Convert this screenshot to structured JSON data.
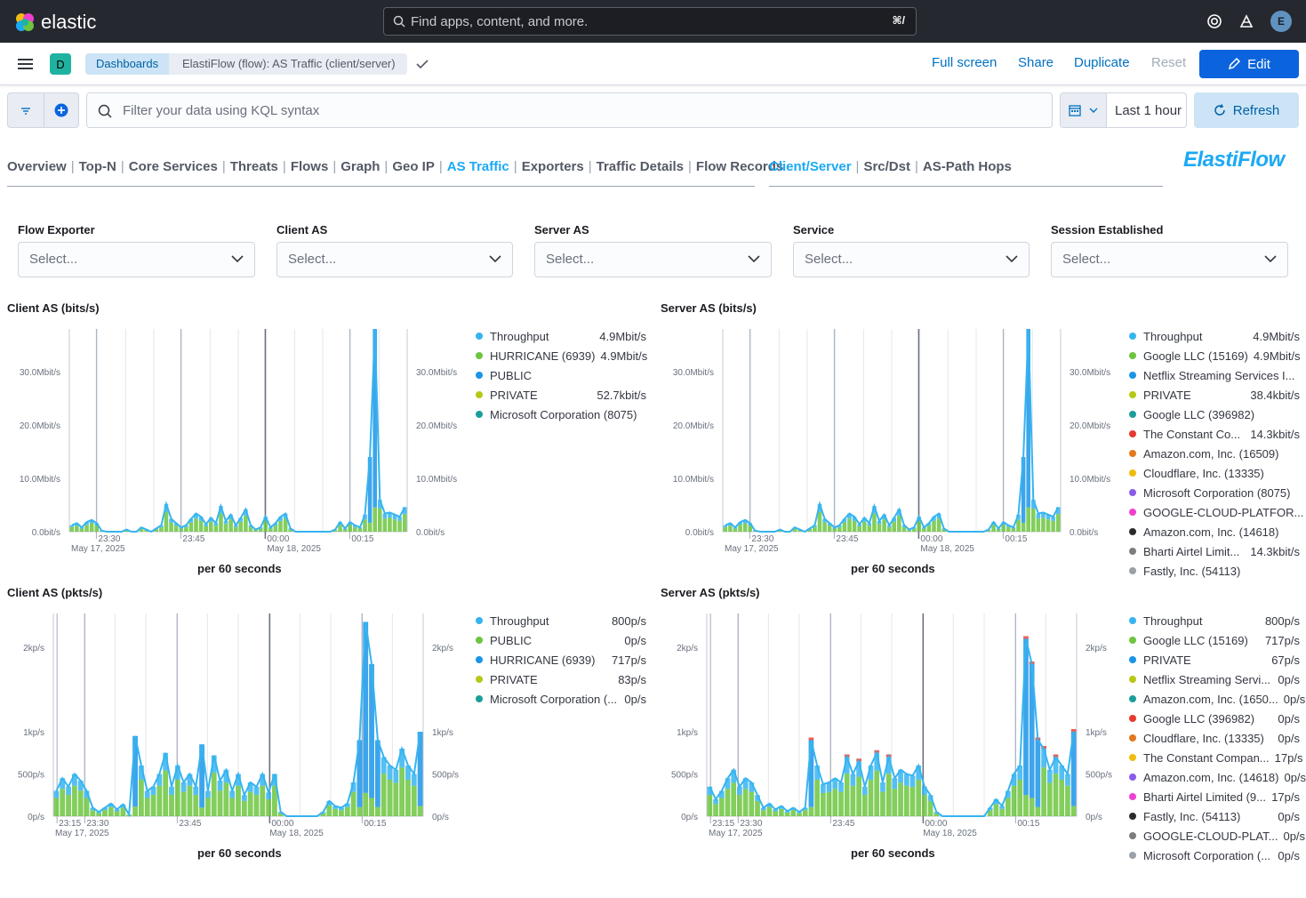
{
  "app": {
    "name": "elastic",
    "search_placeholder": "Find apps, content, and more.",
    "search_shortcut": "⌘/",
    "user_initial": "E"
  },
  "breadcrumb": {
    "space": "D",
    "root": "Dashboards",
    "current": "ElastiFlow (flow): AS Traffic (client/server)"
  },
  "actions": {
    "full_screen": "Full screen",
    "share": "Share",
    "duplicate": "Duplicate",
    "reset": "Reset",
    "edit": "Edit"
  },
  "query": {
    "placeholder": "Filter your data using KQL syntax",
    "time_range": "Last 1 hour",
    "refresh": "Refresh"
  },
  "nav": {
    "tabs": [
      "Overview",
      "Top-N",
      "Core Services",
      "Threats",
      "Flows",
      "Graph",
      "Geo IP",
      "AS Traffic",
      "Exporters",
      "Traffic Details",
      "Flow Records"
    ],
    "active": "AS Traffic",
    "subtabs": [
      "Client/Server",
      "Src/Dst",
      "AS-Path Hops"
    ],
    "active_sub": "Client/Server",
    "brand": "ElastiFlow"
  },
  "controls": [
    {
      "label": "Flow Exporter",
      "value": "Select..."
    },
    {
      "label": "Client AS",
      "value": "Select..."
    },
    {
      "label": "Server AS",
      "value": "Select..."
    },
    {
      "label": "Service",
      "value": "Select..."
    },
    {
      "label": "Session Established",
      "value": "Select..."
    }
  ],
  "colors": {
    "throughput": "#36b4f0",
    "green": "#6dc53f",
    "blue": "#1a95e8",
    "olive": "#b6c816",
    "teal": "#1b9e9b",
    "red": "#e7382d",
    "orange": "#e3781e",
    "yellow": "#f0bc0e",
    "purple": "#8a5ce9",
    "magenta": "#f03fd0",
    "black": "#2b2b2b",
    "gray": "#7d7d7d"
  },
  "panels": [
    {
      "title": "Client AS (bits/s)",
      "xlabel": "per 60 seconds",
      "x_ticks": [
        "23:30",
        "23:45",
        "00:00",
        "00:15"
      ],
      "x_dates": [
        "May 17, 2025",
        "May 18, 2025"
      ],
      "y_ticks": [
        "0.0bit/s",
        "10.0Mbit/s",
        "20.0Mbit/s",
        "30.0Mbit/s"
      ],
      "legend": [
        {
          "name": "Throughput",
          "value": "4.9Mbit/s",
          "color": "#36b4f0"
        },
        {
          "name": "HURRICANE (6939)",
          "value": "4.9Mbit/s",
          "color": "#6dc53f"
        },
        {
          "name": "PUBLIC",
          "value": "",
          "color": "#1a95e8"
        },
        {
          "name": "PRIVATE",
          "value": "52.7kbit/s",
          "color": "#b6c816"
        },
        {
          "name": "Microsoft Corporation (8075)",
          "value": "",
          "color": "#1b9e9b"
        }
      ]
    },
    {
      "title": "Server AS (bits/s)",
      "xlabel": "per 60 seconds",
      "x_ticks": [
        "23:30",
        "23:45",
        "00:00",
        "00:15"
      ],
      "x_dates": [
        "May 17, 2025",
        "May 18, 2025"
      ],
      "y_ticks": [
        "0.0bit/s",
        "10.0Mbit/s",
        "20.0Mbit/s",
        "30.0Mbit/s"
      ],
      "legend": [
        {
          "name": "Throughput",
          "value": "4.9Mbit/s",
          "color": "#36b4f0"
        },
        {
          "name": "Google LLC (15169)",
          "value": "4.9Mbit/s",
          "color": "#6dc53f"
        },
        {
          "name": "Netflix Streaming Services I...",
          "value": "",
          "color": "#1a95e8"
        },
        {
          "name": "PRIVATE",
          "value": "38.4kbit/s",
          "color": "#b6c816"
        },
        {
          "name": "Google LLC (396982)",
          "value": "",
          "color": "#1b9e9b"
        },
        {
          "name": "The Constant Co...",
          "value": "14.3kbit/s",
          "color": "#e7382d"
        },
        {
          "name": "Amazon.com, Inc. (16509)",
          "value": "",
          "color": "#e3781e"
        },
        {
          "name": "Cloudflare, Inc. (13335)",
          "value": "",
          "color": "#f0bc0e"
        },
        {
          "name": "Microsoft Corporation (8075)",
          "value": "",
          "color": "#8a5ce9"
        },
        {
          "name": "GOOGLE-CLOUD-PLATFOR...",
          "value": "",
          "color": "#f03fd0"
        },
        {
          "name": "Amazon.com, Inc. (14618)",
          "value": "",
          "color": "#2b2b2b"
        },
        {
          "name": "Bharti Airtel Limit...",
          "value": "14.3kbit/s",
          "color": "#7d7d7d"
        },
        {
          "name": "Fastly, Inc. (54113)",
          "value": "",
          "color": "#9aa0a6"
        }
      ]
    },
    {
      "title": "Client AS (pkts/s)",
      "xlabel": "per 60 seconds",
      "x_ticks": [
        "23:15",
        "23:30",
        "23:45",
        "00:00",
        "00:15"
      ],
      "x_dates": [
        "May 17, 2025",
        "May 18, 2025"
      ],
      "y_ticks": [
        "0p/s",
        "500p/s",
        "1kp/s",
        "2kp/s"
      ],
      "legend": [
        {
          "name": "Throughput",
          "value": "800p/s",
          "color": "#36b4f0"
        },
        {
          "name": "PUBLIC",
          "value": "0p/s",
          "color": "#6dc53f"
        },
        {
          "name": "HURRICANE (6939)",
          "value": "717p/s",
          "color": "#1a95e8"
        },
        {
          "name": "PRIVATE",
          "value": "83p/s",
          "color": "#b6c816"
        },
        {
          "name": "Microsoft Corporation (...",
          "value": "0p/s",
          "color": "#1b9e9b"
        }
      ]
    },
    {
      "title": "Server AS (pkts/s)",
      "xlabel": "per 60 seconds",
      "x_ticks": [
        "23:15",
        "23:30",
        "23:45",
        "00:00",
        "00:15"
      ],
      "x_dates": [
        "May 17, 2025",
        "May 18, 2025"
      ],
      "y_ticks": [
        "0p/s",
        "500p/s",
        "1kp/s",
        "2kp/s"
      ],
      "legend": [
        {
          "name": "Throughput",
          "value": "800p/s",
          "color": "#36b4f0"
        },
        {
          "name": "Google LLC (15169)",
          "value": "717p/s",
          "color": "#6dc53f"
        },
        {
          "name": "PRIVATE",
          "value": "67p/s",
          "color": "#1a95e8"
        },
        {
          "name": "Netflix Streaming Servi...",
          "value": "0p/s",
          "color": "#b6c816"
        },
        {
          "name": "Amazon.com, Inc. (1650...",
          "value": "0p/s",
          "color": "#1b9e9b"
        },
        {
          "name": "Google LLC (396982)",
          "value": "0p/s",
          "color": "#e7382d"
        },
        {
          "name": "Cloudflare, Inc. (13335)",
          "value": "0p/s",
          "color": "#e3781e"
        },
        {
          "name": "The Constant Compan...",
          "value": "17p/s",
          "color": "#f0bc0e"
        },
        {
          "name": "Amazon.com, Inc. (14618)",
          "value": "0p/s",
          "color": "#8a5ce9"
        },
        {
          "name": "Bharti Airtel Limited (9...",
          "value": "17p/s",
          "color": "#f03fd0"
        },
        {
          "name": "Fastly, Inc. (54113)",
          "value": "0p/s",
          "color": "#2b2b2b"
        },
        {
          "name": "GOOGLE-CLOUD-PLAT...",
          "value": "0p/s",
          "color": "#7d7d7d"
        },
        {
          "name": "Microsoft Corporation (...",
          "value": "0p/s",
          "color": "#9aa0a6"
        }
      ]
    }
  ],
  "chart_data": [
    {
      "type": "area",
      "title": "Client AS (bits/s)",
      "ylabel": "",
      "xlabel": "per 60 seconds",
      "ylim": [
        0,
        38
      ],
      "unit": "Mbit/s",
      "series": [
        {
          "name": "Throughput",
          "values": [
            1.2,
            1.6,
            0.8,
            1.8,
            2.2,
            1.6,
            0.2,
            0,
            0,
            0,
            0,
            0.4,
            0,
            0,
            0.8,
            0.4,
            0,
            0.6,
            1.2,
            5.2,
            2.4,
            1.6,
            0.8,
            1.2,
            2.4,
            3.4,
            2.8,
            1.4,
            2.6,
            1.6,
            4.8,
            2.0,
            3.2,
            1.2,
            2.6,
            4.2,
            1.2,
            0.4,
            0.8,
            2.8,
            0.8,
            1.6,
            2.8,
            3.4,
            0.6,
            0,
            0,
            0,
            0,
            0,
            0,
            0,
            0,
            0.4,
            1.8,
            0.6,
            1.8,
            1.2,
            0.8,
            3.2,
            14.0,
            38.0,
            6.0,
            3.4,
            3.6,
            3.2,
            2.8,
            4.6
          ]
        }
      ]
    },
    {
      "type": "area",
      "title": "Server AS (bits/s)",
      "ylabel": "",
      "xlabel": "per 60 seconds",
      "ylim": [
        0,
        38
      ],
      "unit": "Mbit/s",
      "series": [
        {
          "name": "Throughput",
          "values": [
            1.2,
            1.6,
            0.8,
            1.8,
            2.2,
            1.6,
            0.2,
            0,
            0,
            0,
            0,
            0.4,
            0,
            0,
            0.8,
            0.4,
            0,
            0.6,
            1.2,
            5.2,
            2.4,
            1.6,
            0.8,
            1.2,
            2.4,
            3.4,
            2.8,
            1.4,
            2.6,
            1.6,
            4.8,
            2.0,
            3.2,
            1.2,
            2.6,
            4.2,
            1.2,
            0.4,
            0.8,
            2.8,
            0.8,
            1.6,
            2.8,
            3.4,
            0.6,
            0,
            0,
            0,
            0,
            0,
            0,
            0,
            0,
            0.4,
            1.8,
            0.6,
            1.8,
            1.2,
            0.8,
            3.2,
            14.0,
            38.0,
            6.0,
            3.4,
            3.6,
            3.2,
            2.8,
            4.6
          ]
        }
      ]
    },
    {
      "type": "area",
      "title": "Client AS (pkts/s)",
      "ylabel": "",
      "xlabel": "per 60 seconds",
      "ylim": [
        0,
        2.4
      ],
      "unit": "kp/s",
      "series": [
        {
          "name": "Throughput",
          "values": [
            0.3,
            0.45,
            0.35,
            0.5,
            0.42,
            0.3,
            0.1,
            0.05,
            0.1,
            0.15,
            0.08,
            0.14,
            0.02,
            0.95,
            0.6,
            0.3,
            0.35,
            0.5,
            0.75,
            0.35,
            0.6,
            0.4,
            0.5,
            0.35,
            0.85,
            0.3,
            0.72,
            0.42,
            0.55,
            0.3,
            0.5,
            0.25,
            0.4,
            0.35,
            0.5,
            0.28,
            0.5,
            0.05,
            0,
            0,
            0,
            0,
            0,
            0,
            0.05,
            0.18,
            0.12,
            0.1,
            0.15,
            0.4,
            0.9,
            2.3,
            1.8,
            0.9,
            0.7,
            0.6,
            0.55,
            0.8,
            0.6,
            0.5,
            1.0
          ]
        }
      ]
    },
    {
      "type": "area",
      "title": "Server AS (pkts/s)",
      "ylabel": "",
      "xlabel": "per 60 seconds",
      "ylim": [
        0,
        2.4
      ],
      "unit": "kp/s",
      "series": [
        {
          "name": "Throughput",
          "values": [
            0.35,
            0.2,
            0.3,
            0.45,
            0.55,
            0.35,
            0.45,
            0.4,
            0.25,
            0.1,
            0.15,
            0.08,
            0.12,
            0.06,
            0.1,
            0.05,
            0.1,
            0.9,
            0.6,
            0.38,
            0.4,
            0.45,
            0.4,
            0.7,
            0.5,
            0.65,
            0.35,
            0.6,
            0.75,
            0.4,
            0.7,
            0.45,
            0.55,
            0.5,
            0.48,
            0.6,
            0.35,
            0.25,
            0.05,
            0,
            0,
            0,
            0,
            0,
            0,
            0,
            0,
            0.1,
            0.2,
            0.12,
            0.3,
            0.5,
            0.6,
            2.1,
            1.8,
            0.9,
            0.8,
            0.55,
            0.7,
            0.6,
            0.5,
            1.0
          ]
        }
      ]
    }
  ]
}
